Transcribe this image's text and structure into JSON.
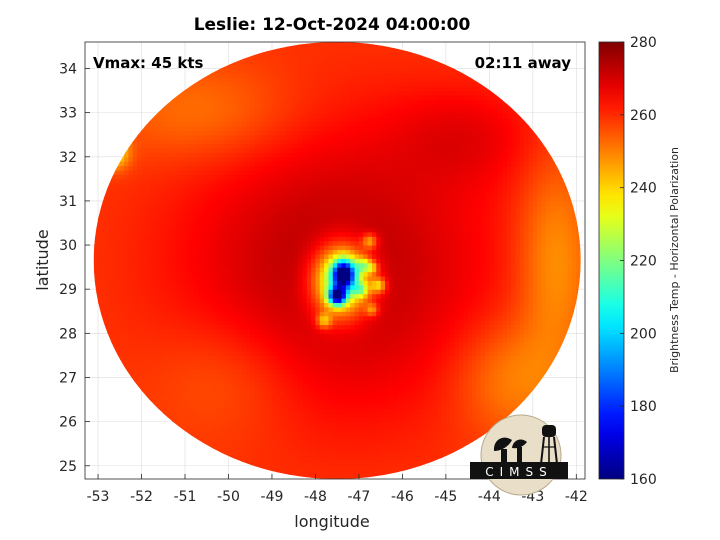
{
  "chart_data": {
    "type": "heatmap",
    "title": "Leslie: 12-Oct-2024 04:00:00",
    "annotations": {
      "vmax": "Vmax: 45 kts",
      "time_away": "02:11 away"
    },
    "xlabel": "longitude",
    "ylabel": "latitude",
    "xlim": [
      -53.3,
      -41.8
    ],
    "ylim": [
      24.7,
      34.6
    ],
    "x_ticks": [
      -53,
      -52,
      -51,
      -50,
      -49,
      -48,
      -47,
      -46,
      -45,
      -44,
      -43,
      -42
    ],
    "y_ticks": [
      25,
      26,
      27,
      28,
      29,
      30,
      31,
      32,
      33,
      34
    ],
    "grid": true,
    "colorbar": {
      "label": "Brightness Temp - Horizontal Polarization",
      "range": [
        160,
        280
      ],
      "ticks": [
        160,
        180,
        200,
        220,
        240,
        260,
        280
      ],
      "colormap": "jet"
    },
    "swath": {
      "center_lon": -47.5,
      "center_lat": 29.65,
      "radius_lon": 5.6,
      "radius_lat": 4.95
    },
    "background_tb": 258,
    "features": [
      {
        "kind": "cold-core",
        "lon": -47.35,
        "lat": 29.35,
        "tb": 172,
        "spread_lon": 0.18,
        "spread_lat": 0.22
      },
      {
        "kind": "cold-core",
        "lon": -47.5,
        "lat": 28.85,
        "tb": 176,
        "spread_lon": 0.14,
        "spread_lat": 0.14
      },
      {
        "kind": "convection",
        "lon": -47.4,
        "lat": 29.2,
        "tb": 205,
        "spread_lon": 0.45,
        "spread_lat": 0.55
      },
      {
        "kind": "warm-ring",
        "lon": -47.5,
        "lat": 29.5,
        "tb": 274,
        "spread_lon": 2.6,
        "spread_lat": 2.4
      },
      {
        "kind": "rainband",
        "lon": -46.9,
        "lat": 29.55,
        "tb": 232,
        "spread_lon": 0.12,
        "spread_lat": 0.12
      },
      {
        "kind": "rainband",
        "lon": -46.95,
        "lat": 29.0,
        "tb": 232,
        "spread_lon": 0.12,
        "spread_lat": 0.12
      },
      {
        "kind": "rainband",
        "lon": -46.55,
        "lat": 29.1,
        "tb": 232,
        "spread_lon": 0.12,
        "spread_lat": 0.12
      },
      {
        "kind": "rainband",
        "lon": -46.7,
        "lat": 29.5,
        "tb": 238,
        "spread_lon": 0.1,
        "spread_lat": 0.1
      },
      {
        "kind": "rainband",
        "lon": -46.75,
        "lat": 30.1,
        "tb": 236,
        "spread_lon": 0.12,
        "spread_lat": 0.12
      },
      {
        "kind": "rainband",
        "lon": -46.7,
        "lat": 28.55,
        "tb": 240,
        "spread_lon": 0.1,
        "spread_lat": 0.1
      },
      {
        "kind": "rainband",
        "lon": -47.8,
        "lat": 28.3,
        "tb": 236,
        "spread_lon": 0.12,
        "spread_lat": 0.12
      },
      {
        "kind": "outer-band",
        "lon": -52.6,
        "lat": 32.1,
        "tb": 236,
        "spread_lon": 0.22,
        "spread_lat": 0.25
      },
      {
        "kind": "outer-band",
        "lon": -42.5,
        "lat": 29.6,
        "tb": 246,
        "spread_lon": 0.6,
        "spread_lat": 1.6
      },
      {
        "kind": "outer-band",
        "lon": -50.5,
        "lat": 33.0,
        "tb": 250,
        "spread_lon": 1.5,
        "spread_lat": 0.8
      },
      {
        "kind": "outer-band",
        "lon": -43.5,
        "lat": 27.0,
        "tb": 248,
        "spread_lon": 0.9,
        "spread_lat": 0.9
      },
      {
        "kind": "outer-band",
        "lon": -44.5,
        "lat": 32.5,
        "tb": 265,
        "spread_lon": 1.2,
        "spread_lat": 0.8
      },
      {
        "kind": "outer-band",
        "lon": -50.0,
        "lat": 27.0,
        "tb": 252,
        "spread_lon": 1.2,
        "spread_lat": 1.0
      }
    ]
  },
  "logo": {
    "text": "CIMSS"
  }
}
